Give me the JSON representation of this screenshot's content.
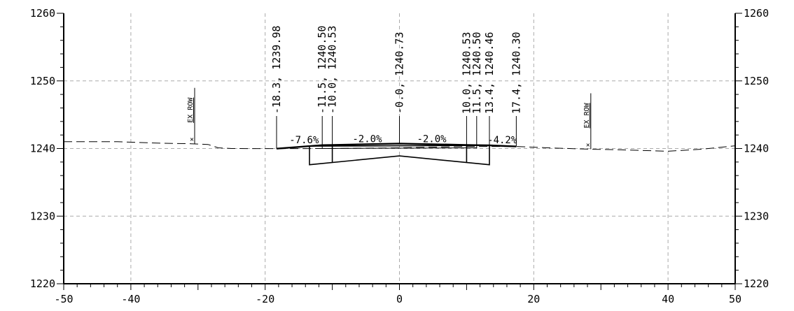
{
  "chart_data": {
    "type": "line",
    "title": "",
    "xlabel": "",
    "ylabel": "",
    "xlim": [
      -50,
      50
    ],
    "ylim": [
      1220,
      1260
    ],
    "x_ticks": [
      -50,
      -40,
      -20,
      0,
      20,
      40,
      50
    ],
    "x_minor_step": 2,
    "y_ticks": [
      1220,
      1230,
      1240,
      1250,
      1260
    ],
    "y_minor_step": 2,
    "grid": true,
    "grid_x": [
      -40,
      -20,
      0,
      20,
      40
    ],
    "grid_y": [
      1230,
      1240,
      1250
    ],
    "existing_ground": [
      [
        -50,
        1241.0
      ],
      [
        -42,
        1241.0
      ],
      [
        -36,
        1240.8
      ],
      [
        -31,
        1240.7
      ],
      [
        -28.5,
        1240.6
      ],
      [
        -27,
        1240.1
      ],
      [
        -25,
        1240.0
      ],
      [
        -18.3,
        1239.98
      ],
      [
        -10,
        1240.0
      ],
      [
        0,
        1240.1
      ],
      [
        10,
        1240.3
      ],
      [
        17.4,
        1240.3
      ],
      [
        22,
        1240.1
      ],
      [
        28.4,
        1239.9
      ],
      [
        33,
        1239.8
      ],
      [
        40,
        1239.6
      ],
      [
        45,
        1239.9
      ],
      [
        50,
        1240.4
      ]
    ],
    "finished_grade": [
      [
        -18.3,
        1239.98
      ],
      [
        -13.4,
        1240.35
      ],
      [
        -11.5,
        1240.5
      ],
      [
        -10.0,
        1240.53
      ],
      [
        0.0,
        1240.73
      ],
      [
        10.0,
        1240.53
      ],
      [
        11.5,
        1240.5
      ],
      [
        13.4,
        1240.46
      ],
      [
        17.4,
        1240.3
      ]
    ],
    "pavement_outline": [
      [
        -13.4,
        1240.35
      ],
      [
        13.4,
        1240.46
      ],
      [
        13.4,
        1237.6
      ],
      [
        0,
        1238.9
      ],
      [
        -13.4,
        1237.6
      ]
    ],
    "pavement_verticals": [
      -10.0,
      10.0
    ],
    "pavement_top_ticks": [
      -11.5,
      11.5
    ],
    "callouts": [
      {
        "label": "-18.3, 1239.98",
        "x": -18.3,
        "y": 1239.98
      },
      {
        "label": "-11.5, 1240.50",
        "x": -11.5,
        "y": 1240.5
      },
      {
        "label": "-10.0, 1240.53",
        "x": -10.0,
        "y": 1240.53
      },
      {
        "label": "-0.0, 1240.73",
        "x": 0.0,
        "y": 1240.73
      },
      {
        "label": "10.0, 1240.53",
        "x": 10.0,
        "y": 1240.53
      },
      {
        "label": "11.5, 1240.50",
        "x": 11.5,
        "y": 1240.5
      },
      {
        "label": "13.4, 1240.46",
        "x": 13.4,
        "y": 1240.46
      },
      {
        "label": "17.4, 1240.30",
        "x": 17.4,
        "y": 1240.3
      }
    ],
    "slopes": [
      {
        "label": "-7.6%",
        "x": -14.2,
        "y": 1240.75
      },
      {
        "label": "-2.0%",
        "x": -4.8,
        "y": 1240.95
      },
      {
        "label": "-2.0%",
        "x": 4.8,
        "y": 1240.95
      },
      {
        "label": "-4.2%",
        "x": 15.3,
        "y": 1240.75
      }
    ],
    "row_markers": [
      {
        "label": "EX ROW",
        "x": -30.5,
        "y": 1240.7
      },
      {
        "label": "EX ROW",
        "x": 28.5,
        "y": 1239.9
      }
    ]
  }
}
